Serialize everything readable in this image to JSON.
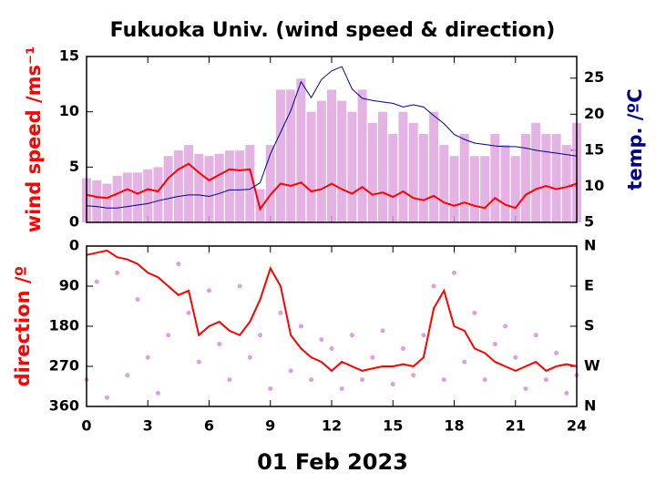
{
  "chart_data": [
    {
      "type": "line",
      "title": "Fukuoka Univ. (wind speed & direction)",
      "ylabel": "wind speed /ms⁻¹",
      "y2label": "temp. /ºC",
      "x": [
        0,
        0.5,
        1,
        1.5,
        2,
        2.5,
        3,
        3.5,
        4,
        4.5,
        5,
        5.5,
        6,
        6.5,
        7,
        7.5,
        8,
        8.5,
        9,
        9.5,
        10,
        10.5,
        11,
        11.5,
        12,
        12.5,
        13,
        13.5,
        14,
        14.5,
        15,
        15.5,
        16,
        16.5,
        17,
        17.5,
        18,
        18.5,
        19,
        19.5,
        20,
        20.5,
        21,
        21.5,
        22,
        22.5,
        23,
        23.5,
        24
      ],
      "xlim": [
        0,
        24
      ],
      "ylim": [
        0,
        15
      ],
      "yticks": [
        0,
        5,
        10,
        15
      ],
      "y2lim": [
        5,
        28
      ],
      "y2ticks": [
        5,
        10,
        15,
        20,
        25
      ],
      "series": [
        {
          "type": "bar",
          "color": "#dda0dd",
          "values": [
            4,
            3.8,
            3.5,
            4.2,
            4.5,
            4.5,
            4.8,
            5,
            6,
            6.5,
            7,
            6.2,
            6,
            6.2,
            6.5,
            6.5,
            7,
            3,
            7,
            12,
            12,
            13,
            10,
            11,
            12,
            11,
            10,
            12,
            9,
            10,
            8,
            10,
            9,
            8,
            10,
            7,
            6,
            8,
            6,
            6,
            8,
            7,
            6,
            8,
            9,
            8,
            8,
            7,
            9
          ]
        },
        {
          "type": "line",
          "color": "#ff0000",
          "values": [
            2.5,
            2.3,
            2.2,
            2.6,
            3.0,
            2.6,
            3.0,
            2.8,
            4.0,
            4.8,
            5.3,
            4.5,
            3.8,
            4.3,
            4.8,
            4.7,
            4.8,
            1.2,
            2.5,
            3.5,
            3.3,
            3.6,
            2.8,
            3.0,
            3.5,
            3.0,
            2.6,
            3.2,
            2.5,
            2.7,
            2.3,
            2.8,
            2.2,
            2.0,
            2.4,
            1.8,
            1.5,
            1.8,
            1.5,
            1.3,
            2.2,
            1.6,
            1.3,
            2.5,
            3.0,
            3.3,
            3.0,
            3.2,
            3.5
          ]
        },
        {
          "type": "line",
          "color": "#00008b",
          "axis": "y2",
          "values": [
            7.3,
            7.2,
            7.0,
            7.0,
            7.2,
            7.4,
            7.6,
            8.0,
            8.3,
            8.6,
            8.8,
            8.8,
            8.6,
            9.0,
            9.5,
            9.5,
            9.6,
            10.5,
            14.5,
            17.5,
            20.5,
            24.5,
            22.3,
            24.8,
            26.0,
            26.6,
            23.5,
            22.2,
            21.9,
            21.7,
            21.5,
            21.0,
            21.3,
            21.0,
            19.8,
            18.7,
            17.2,
            16.5,
            16.0,
            15.8,
            15.6,
            15.5,
            15.5,
            15.3,
            15.0,
            14.8,
            14.6,
            14.4,
            14.2
          ]
        }
      ]
    },
    {
      "type": "line",
      "ylabel": "direction /º",
      "xlabel": "01 Feb 2023",
      "x": [
        0,
        0.5,
        1,
        1.5,
        2,
        2.5,
        3,
        3.5,
        4,
        4.5,
        5,
        5.5,
        6,
        6.5,
        7,
        7.5,
        8,
        8.5,
        9,
        9.5,
        10,
        10.5,
        11,
        11.5,
        12,
        12.5,
        13,
        13.5,
        14,
        14.5,
        15,
        15.5,
        16,
        16.5,
        17,
        17.5,
        18,
        18.5,
        19,
        19.5,
        20,
        20.5,
        21,
        21.5,
        22,
        22.5,
        23,
        23.5,
        24
      ],
      "xlim": [
        0,
        24
      ],
      "xticks": [
        0,
        3,
        6,
        9,
        12,
        15,
        18,
        21,
        24
      ],
      "ylim": [
        0,
        360
      ],
      "y_inverted": true,
      "yticks": [
        0,
        90,
        180,
        270,
        360
      ],
      "y2lim": [
        0,
        360
      ],
      "y2ticks": [
        {
          "value": 0,
          "label": "N"
        },
        {
          "value": 90,
          "label": "E"
        },
        {
          "value": 180,
          "label": "S"
        },
        {
          "value": 270,
          "label": "W"
        },
        {
          "value": 360,
          "label": "N"
        }
      ],
      "series": [
        {
          "type": "scatter",
          "color": "#dda0dd",
          "values": [
            300,
            80,
            340,
            60,
            290,
            120,
            250,
            330,
            200,
            40,
            150,
            260,
            100,
            220,
            300,
            90,
            250,
            200,
            320,
            150,
            280,
            180,
            300,
            210,
            230,
            320,
            200,
            300,
            250,
            190,
            310,
            230,
            290,
            200,
            90,
            300,
            60,
            260,
            150,
            300,
            220,
            180,
            250,
            320,
            200,
            300,
            240,
            330,
            290
          ]
        },
        {
          "type": "line",
          "color": "#ff0000",
          "values": [
            20,
            15,
            10,
            25,
            30,
            40,
            60,
            70,
            90,
            110,
            100,
            200,
            180,
            170,
            190,
            200,
            170,
            120,
            50,
            90,
            200,
            230,
            250,
            260,
            280,
            260,
            270,
            280,
            275,
            270,
            270,
            265,
            270,
            250,
            140,
            100,
            180,
            190,
            230,
            240,
            260,
            270,
            280,
            270,
            260,
            280,
            270,
            265,
            270
          ]
        }
      ]
    }
  ]
}
